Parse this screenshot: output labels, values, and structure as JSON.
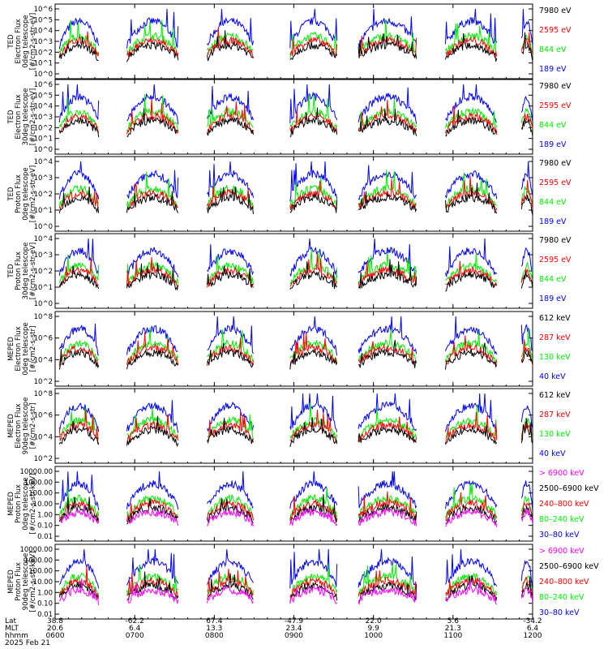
{
  "colors": {
    "black": "#000000",
    "red": "#ff0000",
    "green": "#00ee00",
    "blue": "#0000ff",
    "magenta": "#ff00ff"
  },
  "chart_data": [
    {
      "type": "line",
      "ylabel": [
        "TED",
        "Electron Flux",
        "0deg telescope",
        "[#/cm2-s-str-eV]"
      ],
      "yticks": [
        "10^0",
        "10^1",
        "10^2",
        "10^3",
        "10^4",
        "10^5",
        "10^6"
      ],
      "ylog": true,
      "ylim_exp": [
        0,
        6
      ],
      "legend": [
        {
          "label": "7980 eV",
          "color": "#000000"
        },
        {
          "label": "2595 eV",
          "color": "#ff0000"
        },
        {
          "label": "844 eV",
          "color": "#00ee00"
        },
        {
          "label": "189 eV",
          "color": "#0000ff"
        }
      ]
    },
    {
      "type": "line",
      "ylabel": [
        "TED",
        "Electron Flux",
        "30deg telescope",
        "[#/cm2-s-str-eV]"
      ],
      "yticks": [
        "10^0",
        "10^1",
        "10^2",
        "10^3",
        "10^4",
        "10^5",
        "10^6"
      ],
      "ylog": true,
      "ylim_exp": [
        0,
        6
      ],
      "legend": [
        {
          "label": "7980 eV",
          "color": "#000000"
        },
        {
          "label": "2595 eV",
          "color": "#ff0000"
        },
        {
          "label": "844 eV",
          "color": "#00ee00"
        },
        {
          "label": "189 eV",
          "color": "#0000ff"
        }
      ]
    },
    {
      "type": "line",
      "ylabel": [
        "TED",
        "Proton Flux",
        "0deg telescope",
        "[#/cm2-s-str-eV]"
      ],
      "yticks": [
        "10^0",
        "10^1",
        "10^2",
        "10^3",
        "10^4"
      ],
      "ylog": true,
      "ylim_exp": [
        0,
        4.5
      ],
      "legend": [
        {
          "label": "7980 eV",
          "color": "#000000"
        },
        {
          "label": "2595 eV",
          "color": "#ff0000"
        },
        {
          "label": "844 eV",
          "color": "#00ee00"
        },
        {
          "label": "189 eV",
          "color": "#0000ff"
        }
      ]
    },
    {
      "type": "line",
      "ylabel": [
        "TED",
        "Proton Flux",
        "30deg telescope",
        "[#/cm2-s-str-eV]"
      ],
      "yticks": [
        "10^0",
        "10^1",
        "10^2",
        "10^3",
        "10^4"
      ],
      "ylog": true,
      "ylim_exp": [
        0,
        4.5
      ],
      "legend": [
        {
          "label": "7980 eV",
          "color": "#000000"
        },
        {
          "label": "2595 eV",
          "color": "#ff0000"
        },
        {
          "label": "844 eV",
          "color": "#00ee00"
        },
        {
          "label": "189 eV",
          "color": "#0000ff"
        }
      ]
    },
    {
      "type": "line",
      "ylabel": [
        "MEPED",
        "Electron Flux",
        "0deg telescope",
        "[#/cm2-s-str]"
      ],
      "yticks": [
        "10^2",
        "10^4",
        "10^6",
        "10^8"
      ],
      "ylog": true,
      "ylim_exp": [
        1.5,
        8
      ],
      "legend": [
        {
          "label": "612 keV",
          "color": "#000000"
        },
        {
          "label": "287 keV",
          "color": "#ff0000"
        },
        {
          "label": "130 keV",
          "color": "#00ee00"
        },
        {
          "label": "40 keV",
          "color": "#0000ff"
        }
      ]
    },
    {
      "type": "line",
      "ylabel": [
        "MEPED",
        "Electron Flux",
        "90deg telescope",
        "[#/cm2-s-str]"
      ],
      "yticks": [
        "10^2",
        "10^4",
        "10^6",
        "10^8"
      ],
      "ylog": true,
      "ylim_exp": [
        1.5,
        8
      ],
      "legend": [
        {
          "label": "612 keV",
          "color": "#000000"
        },
        {
          "label": "287 keV",
          "color": "#ff0000"
        },
        {
          "label": "130 keV",
          "color": "#00ee00"
        },
        {
          "label": "40 keV",
          "color": "#0000ff"
        }
      ]
    },
    {
      "type": "line",
      "ylabel": [
        "MEPED",
        "Proton Flux",
        "0deg telescope",
        "[#/cm2-s-str-keV]"
      ],
      "yticks": [
        "0.01",
        "0.10",
        "1.00",
        "10.00",
        "100.00",
        "1000.00",
        "10000.00"
      ],
      "ylog": true,
      "ylim_exp": [
        -2,
        4
      ],
      "legend": [
        {
          "label": "> 6900 keV",
          "color": "#ff00ff"
        },
        {
          "label": "2500–6900 keV",
          "color": "#000000"
        },
        {
          "label": "240–800 keV",
          "color": "#ff0000"
        },
        {
          "label": "80–240 keV",
          "color": "#00ee00"
        },
        {
          "label": "30–80 keV",
          "color": "#0000ff"
        }
      ]
    },
    {
      "type": "line",
      "ylabel": [
        "MEPED",
        "Proton Flux",
        "90deg telescope",
        "[#/cm2-s-str-keV]"
      ],
      "yticks": [
        "0.01",
        "0.10",
        "1.00",
        "10.00",
        "100.00",
        "1000.00",
        "10000.00"
      ],
      "ylog": true,
      "ylim_exp": [
        -2,
        4
      ],
      "legend": [
        {
          "label": "> 6900 keV",
          "color": "#ff00ff"
        },
        {
          "label": "2500–6900 keV",
          "color": "#000000"
        },
        {
          "label": "240–800 keV",
          "color": "#ff0000"
        },
        {
          "label": "80–240 keV",
          "color": "#00ee00"
        },
        {
          "label": "30–80 keV",
          "color": "#0000ff"
        }
      ]
    }
  ],
  "footer": {
    "row_labels": [
      "Lat",
      "MLT",
      "hhmm"
    ],
    "date": "2025 Feb 21",
    "columns": [
      {
        "lat": "38.8",
        "mlt": "20.6",
        "hhmm": "0600"
      },
      {
        "lat": "-62.2",
        "mlt": "6.4",
        "hhmm": "0700"
      },
      {
        "lat": "67.4",
        "mlt": "13.3",
        "hhmm": "0800"
      },
      {
        "lat": "-47.9",
        "mlt": "23.4",
        "hhmm": "0900"
      },
      {
        "lat": "22.0",
        "mlt": "9.9",
        "hhmm": "1000"
      },
      {
        "lat": "5.6",
        "mlt": "21.3",
        "hhmm": "1100"
      },
      {
        "lat": "-34.2",
        "mlt": "6.4",
        "hhmm": "1200"
      }
    ],
    "x_hours": [
      6,
      7,
      8,
      9,
      10,
      11,
      12
    ]
  }
}
